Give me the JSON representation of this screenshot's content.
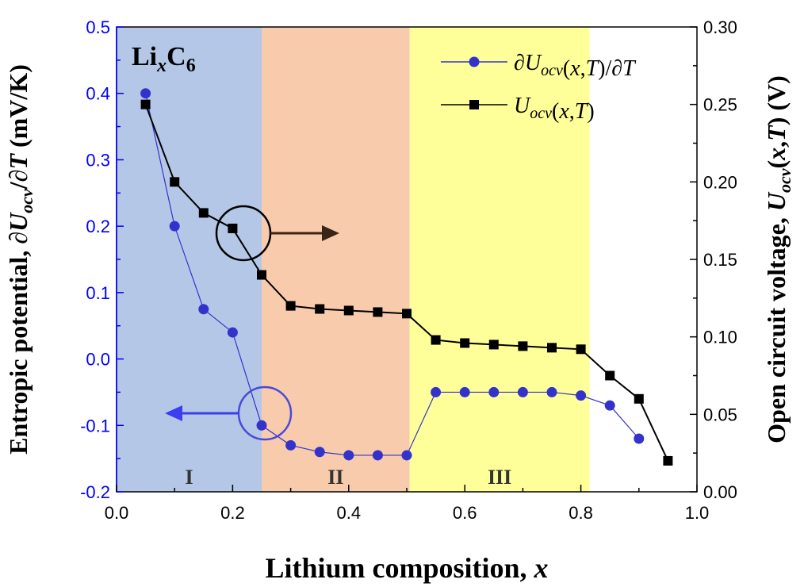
{
  "chart_data": {
    "type": "line",
    "x_label": "Lithium composition, x",
    "left_axis": {
      "label": "Entropic potential, ∂Uocv/∂T (mV/K)",
      "range": [
        -0.2,
        0.5
      ],
      "ticks": [
        "-0.2",
        "-0.1",
        "0.0",
        "0.1",
        "0.2",
        "0.3",
        "0.4",
        "0.5"
      ],
      "color": "#0000ff"
    },
    "right_axis": {
      "label": "Open circuit voltage, Uocv(x,T) (V)",
      "range": [
        0.0,
        0.3
      ],
      "ticks": [
        "0.00",
        "0.05",
        "0.10",
        "0.15",
        "0.20",
        "0.25",
        "0.30"
      ],
      "color": "#000000"
    },
    "x_axis": {
      "range": [
        0.0,
        1.0
      ],
      "ticks": [
        "0.0",
        "0.2",
        "0.4",
        "0.6",
        "0.8",
        "1.0"
      ]
    },
    "regions": [
      {
        "label": "I",
        "x_start": 0.0,
        "x_end": 0.25,
        "color": "#b4c7e7"
      },
      {
        "label": "II",
        "x_start": 0.25,
        "x_end": 0.505,
        "color": "#f8cbad"
      },
      {
        "label": "III",
        "x_start": 0.505,
        "x_end": 0.815,
        "color": "#ffff99"
      }
    ],
    "material_label": {
      "base": "Li",
      "sub1": "x",
      "mid": "C",
      "sub2": "6"
    },
    "series": [
      {
        "name": "∂Uocv(x,T)/∂T",
        "axis": "left",
        "color": "#3333cc",
        "marker": "circle",
        "x": [
          0.05,
          0.1,
          0.15,
          0.2,
          0.25,
          0.3,
          0.35,
          0.4,
          0.45,
          0.5,
          0.55,
          0.6,
          0.65,
          0.7,
          0.75,
          0.8,
          0.85,
          0.9
        ],
        "y": [
          0.4,
          0.2,
          0.075,
          0.04,
          -0.1,
          -0.13,
          -0.14,
          -0.145,
          -0.145,
          -0.145,
          -0.05,
          -0.05,
          -0.05,
          -0.05,
          -0.05,
          -0.055,
          -0.07,
          -0.12
        ]
      },
      {
        "name": "Uocv(x,T)",
        "axis": "right",
        "color": "#000000",
        "marker": "square",
        "x": [
          0.05,
          0.1,
          0.15,
          0.2,
          0.25,
          0.3,
          0.35,
          0.4,
          0.45,
          0.5,
          0.55,
          0.6,
          0.65,
          0.7,
          0.75,
          0.8,
          0.85,
          0.9,
          0.95
        ],
        "y": [
          0.25,
          0.2,
          0.18,
          0.17,
          0.14,
          0.12,
          0.118,
          0.117,
          0.116,
          0.115,
          0.098,
          0.096,
          0.095,
          0.094,
          0.093,
          0.092,
          0.075,
          0.06,
          0.02
        ]
      }
    ],
    "legend": {
      "placement": "top-right",
      "entries": [
        {
          "series": 0,
          "text_parts": [
            "∂U",
            "ocv",
            "(",
            "x",
            ",",
            "T",
            ")/∂",
            "T"
          ]
        },
        {
          "series": 1,
          "text_parts": [
            "U",
            "ocv",
            "(",
            "x",
            ",",
            "T",
            ")"
          ]
        }
      ]
    }
  }
}
